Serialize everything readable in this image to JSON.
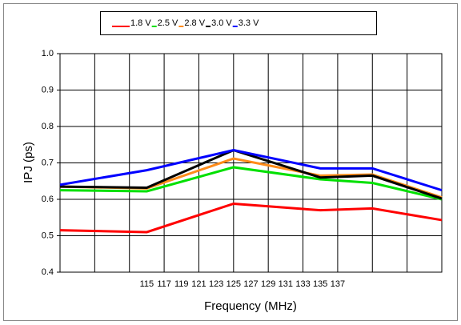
{
  "chart_data": {
    "type": "line",
    "xlabel": "Frequency (MHz)",
    "ylabel": "IPJ (ps)",
    "x": [
      105,
      115,
      125,
      135,
      141,
      149
    ],
    "xlim": [
      105,
      149
    ],
    "xticks": [
      115,
      117,
      119,
      121,
      123,
      125,
      127,
      129,
      131,
      133,
      135,
      137
    ],
    "xgrid": [
      105,
      109,
      113,
      117,
      121,
      125,
      129,
      133,
      137,
      141,
      145,
      149
    ],
    "ylim": [
      0.4,
      1.0
    ],
    "yticks": [
      0.4,
      0.5,
      0.6,
      0.7,
      0.8,
      0.9,
      {
        "value": 1,
        "label": "1.0"
      }
    ],
    "grid": true,
    "series": [
      {
        "name": "1.8 V",
        "color": "#ff0000",
        "values": [
          0.515,
          0.51,
          0.588,
          0.57,
          0.575,
          0.543
        ]
      },
      {
        "name": "2.5 V",
        "color": "#00e000",
        "values": [
          0.625,
          0.622,
          0.688,
          0.655,
          0.645,
          0.6
        ]
      },
      {
        "name": "2.8 V",
        "color": "#ff8c1a",
        "values": [
          0.635,
          0.63,
          0.712,
          0.665,
          0.668,
          0.605
        ]
      },
      {
        "name": "3.0 V",
        "color": "#000000",
        "values": [
          0.635,
          0.632,
          0.735,
          0.66,
          0.665,
          0.602
        ]
      },
      {
        "name": "3.3 V",
        "color": "#0000ff",
        "values": [
          0.64,
          0.68,
          0.735,
          0.685,
          0.685,
          0.625
        ]
      }
    ]
  }
}
